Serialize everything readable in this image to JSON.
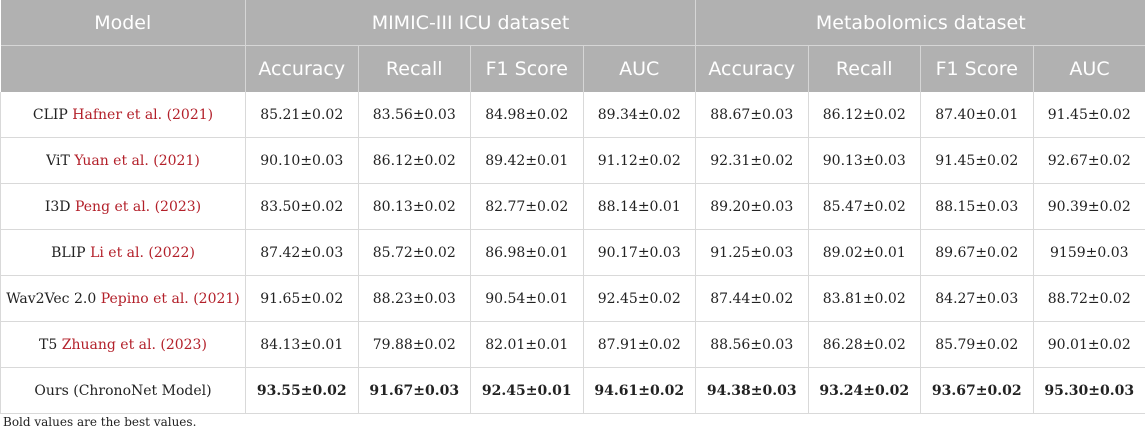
{
  "header": {
    "model_label": "Model",
    "group1": "MIMIC-III ICU dataset",
    "group2": "Metabolomics dataset",
    "metrics": [
      "Accuracy",
      "Recall",
      "F1 Score",
      "AUC",
      "Accuracy",
      "Recall",
      "F1 Score",
      "AUC"
    ]
  },
  "rows": [
    {
      "model": "CLIP",
      "citation": "Hafner et al. (2021)",
      "values": [
        "85.21±0.02",
        "83.56±0.03",
        "84.98±0.02",
        "89.34±0.02",
        "88.67±0.03",
        "86.12±0.02",
        "87.40±0.01",
        "91.45±0.02"
      ]
    },
    {
      "model": "ViT",
      "citation": "Yuan et al. (2021)",
      "values": [
        "90.10±0.03",
        "86.12±0.02",
        "89.42±0.01",
        "91.12±0.02",
        "92.31±0.02",
        "90.13±0.03",
        "91.45±0.02",
        "92.67±0.02"
      ]
    },
    {
      "model": "I3D",
      "citation": "Peng et al. (2023)",
      "values": [
        "83.50±0.02",
        "80.13±0.02",
        "82.77±0.02",
        "88.14±0.01",
        "89.20±0.03",
        "85.47±0.02",
        "88.15±0.03",
        "90.39±0.02"
      ]
    },
    {
      "model": "BLIP",
      "citation": "Li et al. (2022)",
      "values": [
        "87.42±0.03",
        "85.72±0.02",
        "86.98±0.01",
        "90.17±0.03",
        "91.25±0.03",
        "89.02±0.01",
        "89.67±0.02",
        "9159±0.03"
      ]
    },
    {
      "model": "Wav2Vec 2.0",
      "citation": "Pepino et al. (2021)",
      "values": [
        "91.65±0.02",
        "88.23±0.03",
        "90.54±0.01",
        "92.45±0.02",
        "87.44±0.02",
        "83.81±0.02",
        "84.27±0.03",
        "88.72±0.02"
      ]
    },
    {
      "model": "T5",
      "citation": "Zhuang et al. (2023)",
      "values": [
        "84.13±0.01",
        "79.88±0.02",
        "82.01±0.01",
        "87.91±0.02",
        "88.56±0.03",
        "86.28±0.02",
        "85.79±0.02",
        "90.01±0.02"
      ]
    },
    {
      "model": "Ours (ChronoNet Model)",
      "citation": "",
      "values": [
        "93.55±0.02",
        "91.67±0.03",
        "92.45±0.01",
        "94.61±0.02",
        "94.38±0.03",
        "93.24±0.02",
        "93.67±0.02",
        "95.30±0.03"
      ]
    }
  ],
  "footnote": "Bold values are the best values."
}
